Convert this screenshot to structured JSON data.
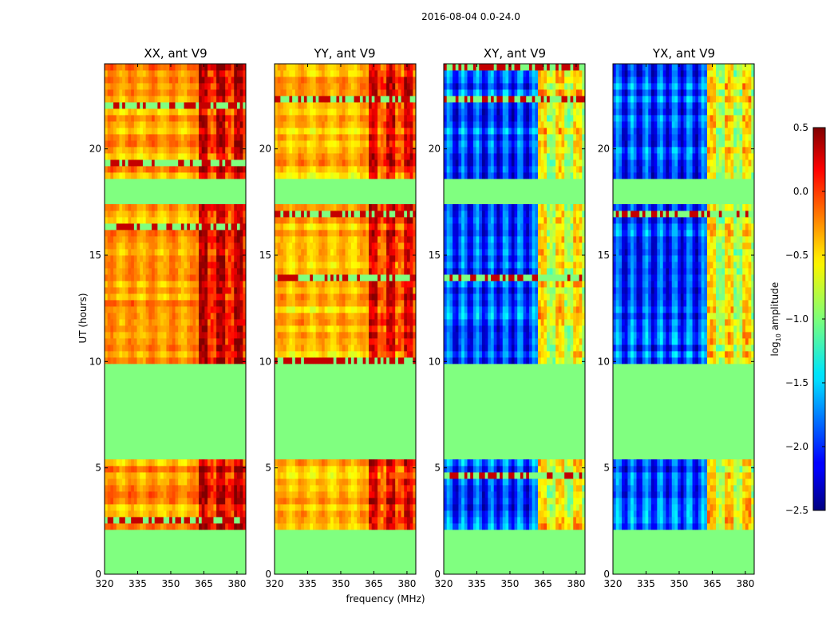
{
  "suptitle": "2016-08-04 0.0-24.0",
  "ylabel": "UT (hours)",
  "xlabel": "frequency (MHz)",
  "colorbar_label": "log10 amplitude",
  "colorbar_label_main": "log",
  "colorbar_label_sub": "10",
  "colorbar_label_tail": " amplitude",
  "chart_data": {
    "type": "heatmap",
    "title": "2016-08-04 0.0-24.0",
    "xlabel": "frequency (MHz)",
    "ylabel": "UT (hours)",
    "xlim": [
      320,
      384
    ],
    "ylim": [
      0,
      24
    ],
    "xticks": [
      320,
      335,
      350,
      365,
      380
    ],
    "xtick_labels": [
      "320",
      "335",
      "350",
      "365",
      "380"
    ],
    "yticks": [
      0,
      5,
      10,
      15,
      20
    ],
    "ytick_labels": [
      "0",
      "5",
      "10",
      "15",
      "20"
    ],
    "colorbar": {
      "colormap": "jet",
      "range": [
        -2.5,
        0.5
      ],
      "ticks": [
        0.5,
        0.0,
        -0.5,
        -1.0,
        -1.5,
        -2.0,
        -2.5
      ],
      "tick_labels": [
        "0.5",
        "0.0",
        "−0.5",
        "−1.0",
        "−1.5",
        "−2.0",
        "−2.5"
      ]
    },
    "missing_value_log10": -1.0,
    "data_time_ranges_hours": [
      [
        2.0,
        5.5
      ],
      [
        10.0,
        17.4
      ],
      [
        18.7,
        24.0
      ]
    ],
    "high_rfi_band_MHz": [
      362,
      383
    ],
    "panels": [
      {
        "title": "XX, ant V9",
        "polarization": "XX",
        "baseline_log10": -0.35,
        "band_log10": 0.2
      },
      {
        "title": "YY, ant V9",
        "polarization": "YY",
        "baseline_log10": -0.45,
        "band_log10": 0.05
      },
      {
        "title": "XY, ant V9",
        "polarization": "XY",
        "baseline_log10": -1.9,
        "band_log10": -0.6
      },
      {
        "title": "YX, ant V9",
        "polarization": "YX",
        "baseline_log10": -1.9,
        "band_log10": -0.6
      }
    ]
  }
}
